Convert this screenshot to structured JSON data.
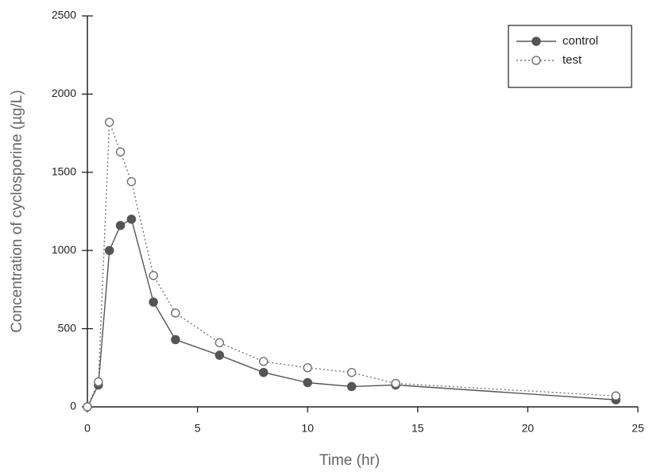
{
  "chart_data": {
    "type": "line",
    "x_label": "Time (hr)",
    "y_label": "Concentration of cyclosporine (µg/L)",
    "x": [
      0,
      0.5,
      1,
      1.5,
      2,
      3,
      4,
      6,
      8,
      10,
      12,
      14,
      24
    ],
    "series": [
      {
        "name": "control",
        "color": "#555555",
        "style": "solid",
        "marker": "filled",
        "values": [
          0,
          140,
          1000,
          1160,
          1200,
          670,
          430,
          330,
          220,
          155,
          130,
          140,
          45
        ]
      },
      {
        "name": "test",
        "color": "#777777",
        "style": "dotted",
        "marker": "open",
        "values": [
          0,
          160,
          1820,
          1630,
          1440,
          840,
          600,
          410,
          290,
          250,
          220,
          150,
          70
        ]
      }
    ],
    "xlim": [
      0,
      25
    ],
    "xticks": [
      0,
      5,
      10,
      15,
      20,
      25
    ],
    "ylim": [
      0,
      2500
    ],
    "yticks": [
      0,
      500,
      1000,
      1500,
      2000,
      2500
    ],
    "legend": "upper right"
  }
}
